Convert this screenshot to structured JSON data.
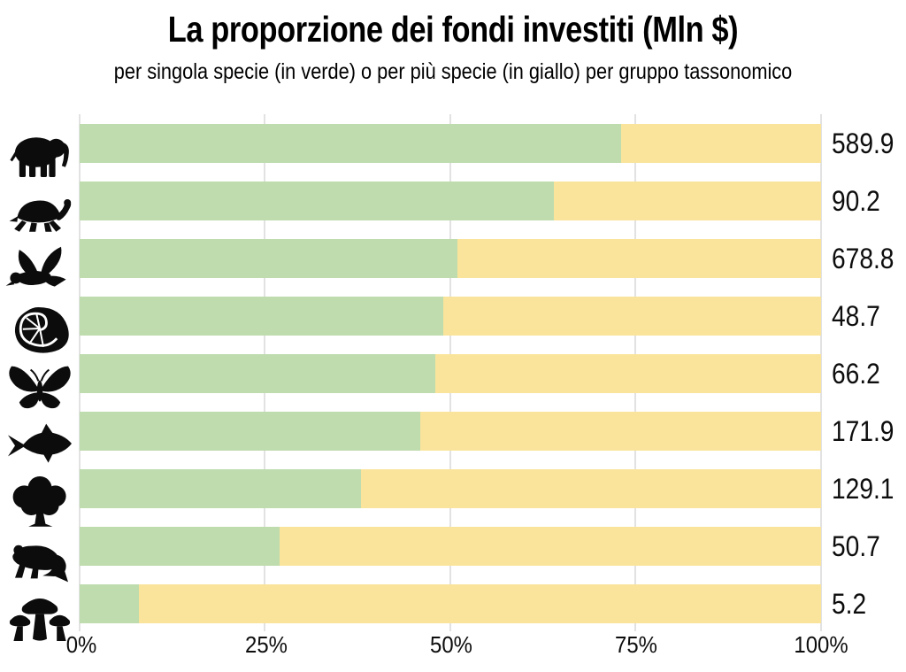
{
  "chart_data": {
    "type": "bar",
    "orientation": "horizontal",
    "stacked": true,
    "title": "La proporzione dei fondi investiti (Mln $)",
    "subtitle": "per singola specie (in verde) o per più specie (in giallo) per gruppo tassonomico",
    "unit": "Mln $",
    "x_axis": {
      "range_pct": [
        0,
        100
      ],
      "tick_labels": [
        "0%",
        "25%",
        "50%",
        "75%",
        "100%"
      ],
      "gridlines": true
    },
    "series": [
      {
        "name": "singola specie (in verde)",
        "color_role": "single_green"
      },
      {
        "name": "più specie (in giallo)",
        "color_role": "multi_yellow"
      }
    ],
    "rows": [
      {
        "icon": "elephant-icon",
        "single_species_pct": 73,
        "multi_species_pct": 27,
        "total_mln": 589.9,
        "value_label": "589.9"
      },
      {
        "icon": "turtle-icon",
        "single_species_pct": 64,
        "multi_species_pct": 36,
        "total_mln": 90.2,
        "value_label": "90.2"
      },
      {
        "icon": "bird-icon",
        "single_species_pct": 51,
        "multi_species_pct": 49,
        "total_mln": 678.8,
        "value_label": "678.8"
      },
      {
        "icon": "nautilus-icon",
        "single_species_pct": 49,
        "multi_species_pct": 51,
        "total_mln": 48.7,
        "value_label": "48.7"
      },
      {
        "icon": "butterfly-icon",
        "single_species_pct": 48,
        "multi_species_pct": 52,
        "total_mln": 66.2,
        "value_label": "66.2"
      },
      {
        "icon": "fish-icon",
        "single_species_pct": 46,
        "multi_species_pct": 54,
        "total_mln": 171.9,
        "value_label": "171.9"
      },
      {
        "icon": "tree-icon",
        "single_species_pct": 38,
        "multi_species_pct": 62,
        "total_mln": 129.1,
        "value_label": "129.1"
      },
      {
        "icon": "frog-icon",
        "single_species_pct": 27,
        "multi_species_pct": 73,
        "total_mln": 50.7,
        "value_label": "50.7"
      },
      {
        "icon": "mushroom-icon",
        "single_species_pct": 8,
        "multi_species_pct": 92,
        "total_mln": 5.2,
        "value_label": "5.2"
      }
    ]
  },
  "colors": {
    "single_green": "#bedcae",
    "multi_yellow": "#fae49c",
    "gridline": "#e2e2e2",
    "icon": "#0c0c0c"
  }
}
